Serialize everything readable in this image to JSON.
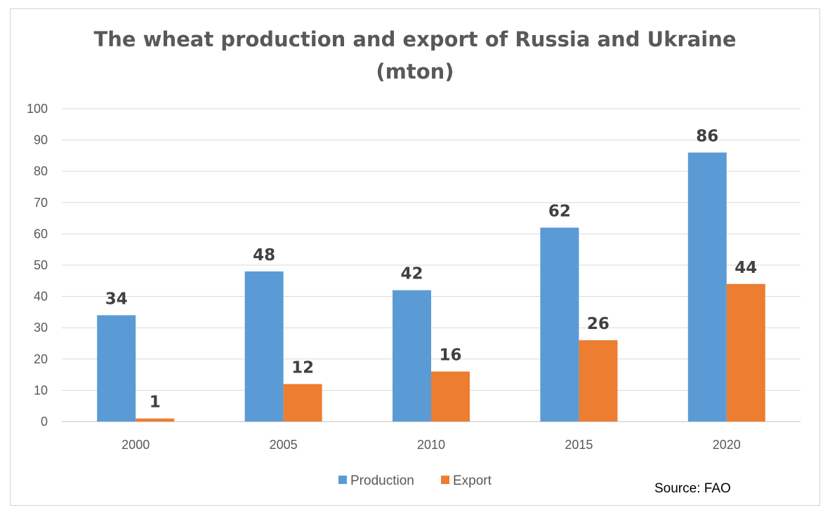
{
  "chart_data": {
    "type": "bar",
    "title_lines": [
      "The wheat production and export of Russia and Ukraine",
      "(mton)"
    ],
    "categories": [
      "2000",
      "2005",
      "2010",
      "2015",
      "2020"
    ],
    "series": [
      {
        "name": "Production",
        "values": [
          34,
          48,
          42,
          62,
          86
        ],
        "color": "#5B9BD5"
      },
      {
        "name": "Export",
        "values": [
          1,
          12,
          16,
          26,
          44
        ],
        "color": "#ED7D31"
      }
    ],
    "ylim": [
      0,
      100
    ],
    "yticks": [
      0,
      10,
      20,
      30,
      40,
      50,
      60,
      70,
      80,
      90,
      100
    ],
    "grid": true,
    "legend": "bottom-center",
    "data_labels": true,
    "source": "Source: FAO"
  }
}
